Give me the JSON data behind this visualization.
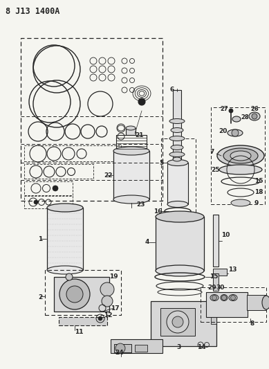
{
  "title": "8 J13 1400A",
  "bg_color": "#f5f5f0",
  "line_color": "#222222",
  "fig_width": 3.89,
  "fig_height": 5.33,
  "dpi": 100
}
